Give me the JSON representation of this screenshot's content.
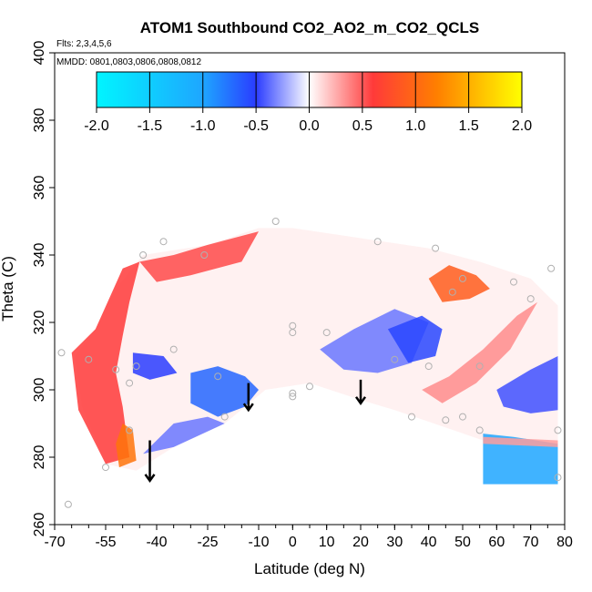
{
  "chart_data": {
    "type": "heatmap",
    "title": "ATOM1 Southbound CO2_AO2_m_CO2_QCLS",
    "subtitle_flights": "Flts: 2,3,4,5,6",
    "subtitle_dates": "MMDD: 0801,0803,0806,0808,0812",
    "xlabel": "Latitude (deg N)",
    "ylabel": "Theta (C)",
    "xlim": [
      -70,
      80
    ],
    "ylim": [
      260,
      400
    ],
    "x_ticks": [
      -70,
      -55,
      -40,
      -25,
      -10,
      0,
      10,
      20,
      30,
      40,
      50,
      60,
      70,
      80
    ],
    "y_ticks": [
      260,
      280,
      300,
      320,
      340,
      360,
      380,
      400
    ],
    "colorbar": {
      "range": [
        -2.0,
        2.0
      ],
      "ticks": [
        "-2.0",
        "-1.5",
        "-1.0",
        "-0.5",
        "0.0",
        "0.5",
        "1.0",
        "1.5",
        "2.0"
      ],
      "colors": [
        "#00f5ff",
        "#1ea6ff",
        "#2a3cff",
        "#ffffff",
        "#ff3a3a",
        "#ff7f00",
        "#ffff00"
      ]
    },
    "regions": [
      {
        "name": "main-envelope",
        "value": 0.05,
        "polygon": [
          [
            -55,
            278
          ],
          [
            -62,
            295
          ],
          [
            -64,
            310
          ],
          [
            -58,
            318
          ],
          [
            -52,
            330
          ],
          [
            -44,
            340
          ],
          [
            -25,
            343
          ],
          [
            -10,
            348
          ],
          [
            0,
            348
          ],
          [
            20,
            345
          ],
          [
            40,
            342
          ],
          [
            55,
            338
          ],
          [
            70,
            333
          ],
          [
            78,
            325
          ],
          [
            78,
            284
          ],
          [
            56,
            285
          ],
          [
            30,
            294
          ],
          [
            20,
            297
          ],
          [
            5,
            302
          ],
          [
            -8,
            300
          ],
          [
            -20,
            290
          ],
          [
            -35,
            283
          ],
          [
            -46,
            276
          ]
        ]
      },
      {
        "name": "south-red-column",
        "value": 0.6,
        "polygon": [
          [
            -55,
            278
          ],
          [
            -63,
            294
          ],
          [
            -65,
            311
          ],
          [
            -58,
            318
          ],
          [
            -50,
            336
          ],
          [
            -45,
            338
          ],
          [
            -48,
            326
          ],
          [
            -50,
            316
          ],
          [
            -52,
            305
          ],
          [
            -50,
            295
          ],
          [
            -48,
            280
          ]
        ]
      },
      {
        "name": "south-red-core",
        "value": 1.1,
        "polygon": [
          [
            -51,
            277
          ],
          [
            -52,
            284
          ],
          [
            -50,
            290
          ],
          [
            -47,
            288
          ],
          [
            -46,
            279
          ]
        ]
      },
      {
        "name": "south-red-upper",
        "value": 0.55,
        "polygon": [
          [
            -45,
            338
          ],
          [
            -35,
            340
          ],
          [
            -25,
            343
          ],
          [
            -10,
            347
          ],
          [
            -15,
            338
          ],
          [
            -30,
            334
          ],
          [
            -40,
            332
          ]
        ]
      },
      {
        "name": "south-blue-patch",
        "value": -0.5,
        "polygon": [
          [
            -47,
            311
          ],
          [
            -38,
            310
          ],
          [
            -34,
            305
          ],
          [
            -42,
            303
          ],
          [
            -47,
            305
          ]
        ]
      },
      {
        "name": "mid-blue-patch",
        "value": -0.7,
        "polygon": [
          [
            -30,
            305
          ],
          [
            -22,
            307
          ],
          [
            -14,
            304
          ],
          [
            -10,
            300
          ],
          [
            -14,
            295
          ],
          [
            -22,
            292
          ],
          [
            -30,
            296
          ]
        ]
      },
      {
        "name": "mid-lower-blue",
        "value": -0.35,
        "polygon": [
          [
            -44,
            281
          ],
          [
            -35,
            290
          ],
          [
            -25,
            292
          ],
          [
            -20,
            290
          ],
          [
            -35,
            283
          ]
        ]
      },
      {
        "name": "tropical-blue-band",
        "value": -0.35,
        "polygon": [
          [
            8,
            312
          ],
          [
            18,
            318
          ],
          [
            30,
            324
          ],
          [
            40,
            320
          ],
          [
            35,
            308
          ],
          [
            25,
            305
          ],
          [
            15,
            306
          ]
        ]
      },
      {
        "name": "north-blue-patch",
        "value": -0.55,
        "polygon": [
          [
            28,
            318
          ],
          [
            38,
            322
          ],
          [
            44,
            318
          ],
          [
            42,
            310
          ],
          [
            34,
            308
          ]
        ]
      },
      {
        "name": "north-red-patch",
        "value": 0.9,
        "polygon": [
          [
            40,
            333
          ],
          [
            46,
            337
          ],
          [
            54,
            334
          ],
          [
            58,
            330
          ],
          [
            52,
            327
          ],
          [
            44,
            326
          ]
        ]
      },
      {
        "name": "north-red-streak",
        "value": 0.35,
        "polygon": [
          [
            38,
            300
          ],
          [
            46,
            304
          ],
          [
            56,
            312
          ],
          [
            66,
            322
          ],
          [
            72,
            326
          ],
          [
            64,
            312
          ],
          [
            54,
            302
          ],
          [
            44,
            296
          ]
        ]
      },
      {
        "name": "north-blue-edge",
        "value": -0.45,
        "polygon": [
          [
            60,
            300
          ],
          [
            70,
            306
          ],
          [
            78,
            310
          ],
          [
            78,
            294
          ],
          [
            70,
            293
          ],
          [
            62,
            295
          ]
        ]
      },
      {
        "name": "north-deep-blue",
        "value": -1.0,
        "polygon": [
          [
            56,
            272
          ],
          [
            78,
            272
          ],
          [
            78,
            284
          ],
          [
            65,
            286
          ],
          [
            56,
            287
          ]
        ]
      },
      {
        "name": "north-red-bottom-line",
        "value": 0.3,
        "polygon": [
          [
            56,
            284
          ],
          [
            78,
            283
          ],
          [
            78,
            285
          ],
          [
            56,
            286
          ]
        ]
      }
    ],
    "sample_points": [
      [
        -68,
        311
      ],
      [
        -66,
        266
      ],
      [
        -60,
        309
      ],
      [
        -55,
        277
      ],
      [
        -52,
        306
      ],
      [
        -48,
        288
      ],
      [
        -48,
        302
      ],
      [
        -46,
        307
      ],
      [
        -44,
        340
      ],
      [
        -38,
        344
      ],
      [
        -35,
        312
      ],
      [
        -26,
        340
      ],
      [
        -22,
        304
      ],
      [
        -20,
        292
      ],
      [
        -5,
        350
      ],
      [
        0,
        319
      ],
      [
        0,
        317
      ],
      [
        0,
        299
      ],
      [
        0,
        298
      ],
      [
        5,
        301
      ],
      [
        10,
        317
      ],
      [
        25,
        344
      ],
      [
        30,
        309
      ],
      [
        35,
        292
      ],
      [
        40,
        307
      ],
      [
        42,
        342
      ],
      [
        45,
        291
      ],
      [
        47,
        329
      ],
      [
        50,
        333
      ],
      [
        50,
        292
      ],
      [
        55,
        307
      ],
      [
        55,
        288
      ],
      [
        65,
        332
      ],
      [
        70,
        327
      ],
      [
        76,
        336
      ],
      [
        78,
        288
      ],
      [
        78,
        274
      ]
    ],
    "arrows_at_latitude": [
      -42,
      -13,
      20
    ]
  }
}
